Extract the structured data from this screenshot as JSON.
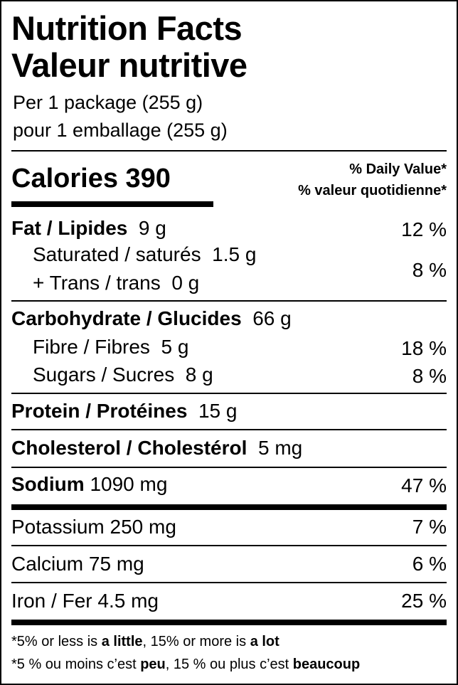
{
  "title_en": "Nutrition Facts",
  "title_fr": "Valeur nutritive",
  "serving_en": "Per 1 package (255 g)",
  "serving_fr": "pour 1 emballage (255 g)",
  "calories": {
    "label": "Calories",
    "value": "390"
  },
  "dv_header_en": "% Daily Value*",
  "dv_header_fr": "% valeur quotidienne*",
  "nutrients": {
    "fat": {
      "label": "Fat / Lipides",
      "amount": "9 g",
      "dv": "12 %"
    },
    "saturated": {
      "label": "Saturated / saturés",
      "amount": "1.5 g"
    },
    "trans": {
      "label": "+ Trans / trans",
      "amount": "0 g"
    },
    "sat_trans_dv": "8 %",
    "carbohydrate": {
      "label": "Carbohydrate / Glucides",
      "amount": "66 g"
    },
    "fibre": {
      "label": "Fibre / Fibres",
      "amount": "5 g",
      "dv": "18 %"
    },
    "sugars": {
      "label": "Sugars / Sucres",
      "amount": "8 g",
      "dv": "8 %"
    },
    "protein": {
      "label": "Protein / Protéines",
      "amount": "15 g"
    },
    "cholesterol": {
      "label": "Cholesterol / Cholestérol",
      "amount": "5 mg"
    },
    "sodium": {
      "label": "Sodium",
      "amount": "1090 mg",
      "dv": "47 %"
    },
    "potassium": {
      "label": "Potassium",
      "amount": "250 mg",
      "dv": "7 %"
    },
    "calcium": {
      "label": "Calcium",
      "amount": "75 mg",
      "dv": "6 %"
    },
    "iron": {
      "label": "Iron / Fer",
      "amount": "4.5 mg",
      "dv": "25 %"
    }
  },
  "footnote_en": {
    "p1": "*5% or less is ",
    "b1": "a little",
    "p2": ", 15% or more is ",
    "b2": "a lot"
  },
  "footnote_fr": {
    "p1": "*5 % ou moins c’est ",
    "b1": "peu",
    "p2": ", 15 % ou plus c’est ",
    "b2": "beaucoup"
  }
}
